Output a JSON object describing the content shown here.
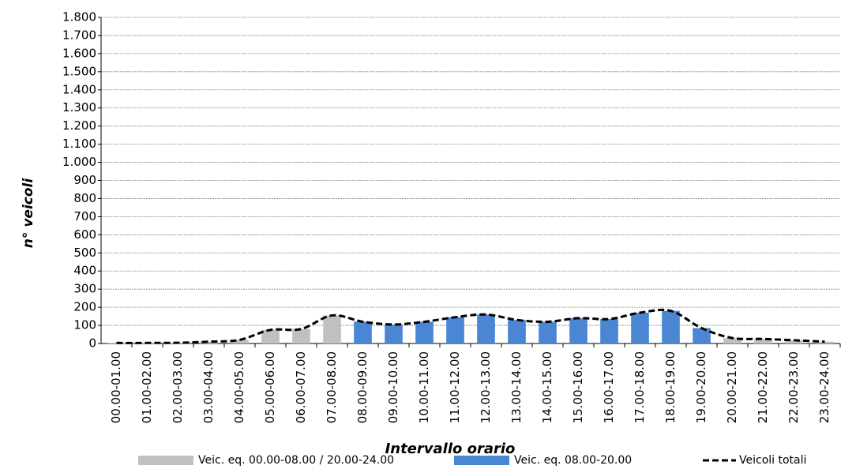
{
  "chart_data": {
    "type": "bar",
    "y_label": "n° veicoli",
    "x_label": "Intervallo orario",
    "categories": [
      "00.00-01.00",
      "01.00-02.00",
      "02.00-03.00",
      "03.00-04.00",
      "04.00-05.00",
      "05.00-06.00",
      "06.00-07.00",
      "07.00-08.00",
      "08.00-09.00",
      "09.00-10.00",
      "10.00-11.00",
      "11.00-12.00",
      "12.00-13.00",
      "13.00-14.00",
      "14.00-15.00",
      "15.00-16.00",
      "16.00-17.00",
      "17.00-18.00",
      "18.00-19.00",
      "19.00-20.00",
      "20.00-21.00",
      "21.00-22.00",
      "22.00-23.00",
      "23.00-24.00"
    ],
    "series": [
      {
        "name": "Veic. eq. 00.00-08.00 / 20.00-24.00",
        "type": "bar",
        "color": "#c0c0c0",
        "values": [
          3,
          3,
          4,
          10,
          20,
          75,
          80,
          155,
          null,
          null,
          null,
          null,
          null,
          null,
          null,
          null,
          null,
          null,
          null,
          null,
          30,
          25,
          18,
          10
        ]
      },
      {
        "name": "Veic. eq. 08.00-20.00",
        "type": "bar",
        "color": "#4a86d4",
        "values": [
          null,
          null,
          null,
          null,
          null,
          null,
          null,
          null,
          120,
          105,
          120,
          145,
          160,
          130,
          120,
          140,
          135,
          170,
          180,
          85,
          null,
          null,
          null,
          null
        ]
      },
      {
        "name": "Veicoli totali",
        "type": "line",
        "color": "#000000",
        "values": [
          3,
          3,
          4,
          10,
          20,
          75,
          80,
          155,
          120,
          105,
          120,
          145,
          160,
          130,
          120,
          140,
          135,
          170,
          180,
          85,
          30,
          25,
          18,
          10
        ]
      }
    ],
    "ylim": [
      0,
      1800
    ],
    "yticks": [
      0,
      100,
      200,
      300,
      400,
      500,
      600,
      700,
      800,
      900,
      {
        "value": 1000,
        "label": "1.000"
      },
      {
        "value": 1100,
        "label": "1.100"
      },
      {
        "value": 1200,
        "label": "1.200"
      },
      {
        "value": 1300,
        "label": "1.300"
      },
      {
        "value": 1400,
        "label": "1.400"
      },
      {
        "value": 1500,
        "label": "1.500"
      },
      {
        "value": 1600,
        "label": "1.600"
      },
      {
        "value": 1700,
        "label": "1.700"
      },
      {
        "value": 1800,
        "label": "1.800"
      }
    ],
    "grid": true
  }
}
